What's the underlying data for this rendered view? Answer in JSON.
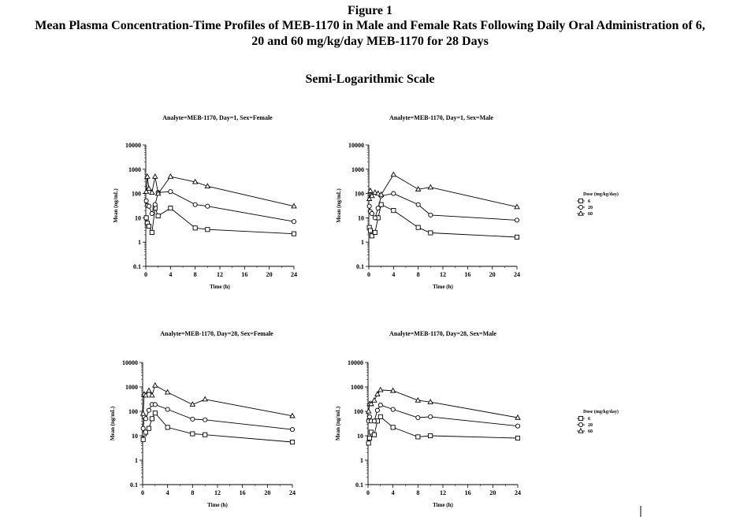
{
  "figure": {
    "label": "Figure 1",
    "title_line1": "Mean Plasma Concentration-Time Profiles of MEB-1170 in Male and Female Rats Following Daily Oral Administration of 6,",
    "title_line2": "20 and 60 mg/kg/day MEB-1170 for 28 Days",
    "subtitle": "Semi-Logarithmic Scale"
  },
  "legend": {
    "title": "Dose (mg/kg/day)",
    "entries": [
      {
        "label": "6",
        "marker": "square-icon"
      },
      {
        "label": "20",
        "marker": "circle-icon"
      },
      {
        "label": "60",
        "marker": "triangle-icon"
      }
    ]
  },
  "chart_data": [
    {
      "type": "line",
      "title": "Analyte=MEB-1170, Day=1, Sex=Female",
      "xlabel": "Time (h)",
      "ylabel": "Mean (ng/mL)",
      "yscale": "log",
      "xlim": [
        0,
        24
      ],
      "ylim": [
        0.1,
        10000
      ],
      "xticks": [
        "0",
        "4",
        "8",
        "12",
        "16",
        "20",
        "24"
      ],
      "yticks": [
        "0.1",
        "1",
        "10",
        "100",
        "1000",
        "10000"
      ],
      "series": [
        {
          "name": "6",
          "marker": "square",
          "x": [
            0.083,
            0.25,
            0.5,
            1,
            1.5,
            2,
            4,
            8,
            10,
            24
          ],
          "y": [
            10,
            6,
            4.5,
            2.5,
            25,
            12,
            25,
            3.8,
            3.3,
            2.2
          ]
        },
        {
          "name": "20",
          "marker": "circle",
          "x": [
            0.083,
            0.25,
            0.5,
            1,
            1.5,
            2,
            4,
            8,
            10,
            24
          ],
          "y": [
            50,
            32,
            30,
            15,
            35,
            110,
            120,
            35,
            30,
            7
          ]
        },
        {
          "name": "60",
          "marker": "triangle",
          "x": [
            0.083,
            0.25,
            0.5,
            1,
            1.5,
            2,
            4,
            8,
            10,
            24
          ],
          "y": [
            120,
            500,
            160,
            110,
            500,
            100,
            500,
            300,
            200,
            30
          ]
        }
      ]
    },
    {
      "type": "line",
      "title": "Analyte=MEB-1170, Day=1, Sex=Male",
      "xlabel": "Time (h)",
      "ylabel": "Mean (ng/mL)",
      "yscale": "log",
      "xlim": [
        0,
        24
      ],
      "ylim": [
        0.1,
        10000
      ],
      "xticks": [
        "0",
        "4",
        "8",
        "12",
        "16",
        "20",
        "24"
      ],
      "yticks": [
        "0.1",
        "1",
        "10",
        "100",
        "1000",
        "10000"
      ],
      "series": [
        {
          "name": "6",
          "marker": "square",
          "x": [
            0.083,
            0.25,
            0.5,
            1,
            1.5,
            2,
            4,
            8,
            10,
            24
          ],
          "y": [
            4,
            3,
            1.8,
            2.5,
            10,
            35,
            20,
            4,
            2.4,
            1.6
          ]
        },
        {
          "name": "20",
          "marker": "circle",
          "x": [
            0.083,
            0.25,
            0.5,
            1,
            1.5,
            2,
            4,
            8,
            10,
            24
          ],
          "y": [
            30,
            18,
            15,
            10,
            25,
            80,
            100,
            35,
            13,
            8
          ]
        },
        {
          "name": "60",
          "marker": "triangle",
          "x": [
            0.083,
            0.25,
            0.5,
            1,
            1.5,
            2,
            4,
            8,
            10,
            24
          ],
          "y": [
            60,
            130,
            80,
            110,
            100,
            90,
            600,
            150,
            180,
            28
          ]
        }
      ]
    },
    {
      "type": "line",
      "title": "Analyte=MEB-1170, Day=28, Sex=Female",
      "xlabel": "Time (h)",
      "ylabel": "Mean (ng/mL)",
      "yscale": "log",
      "xlim": [
        0,
        24
      ],
      "ylim": [
        0.1,
        10000
      ],
      "xticks": [
        "0",
        "4",
        "8",
        "12",
        "16",
        "20",
        "24"
      ],
      "yticks": [
        "0.1",
        "1",
        "10",
        "100",
        "1000",
        "10000"
      ],
      "series": [
        {
          "name": "6",
          "marker": "square",
          "x": [
            0.083,
            0.25,
            0.5,
            1,
            1.5,
            2,
            4,
            8,
            10,
            24
          ],
          "y": [
            7,
            12,
            14,
            20,
            50,
            85,
            22,
            12,
            11,
            5.5
          ]
        },
        {
          "name": "20",
          "marker": "circle",
          "x": [
            0.083,
            0.25,
            0.5,
            1,
            1.5,
            2,
            4,
            8,
            10,
            24
          ],
          "y": [
            20,
            60,
            50,
            110,
            190,
            190,
            120,
            48,
            45,
            18
          ]
        },
        {
          "name": "60",
          "marker": "triangle",
          "x": [
            0.083,
            0.25,
            0.5,
            1,
            1.5,
            2,
            4,
            8,
            10,
            24
          ],
          "y": [
            80,
            500,
            450,
            700,
            450,
            1150,
            600,
            190,
            310,
            65
          ]
        }
      ]
    },
    {
      "type": "line",
      "title": "Analyte=MEB-1170, Day=28, Sex=Male",
      "xlabel": "Time (h)",
      "ylabel": "Mean (ng/mL)",
      "yscale": "log",
      "xlim": [
        0,
        24
      ],
      "ylim": [
        0.1,
        10000
      ],
      "xticks": [
        "0",
        "4",
        "8",
        "12",
        "16",
        "20",
        "24"
      ],
      "yticks": [
        "0.1",
        "1",
        "10",
        "100",
        "1000",
        "10000"
      ],
      "series": [
        {
          "name": "6",
          "marker": "square",
          "x": [
            0.083,
            0.25,
            0.5,
            1,
            1.5,
            2,
            4,
            8,
            10,
            24
          ],
          "y": [
            5,
            8,
            14,
            11,
            40,
            60,
            22,
            9,
            10,
            8
          ]
        },
        {
          "name": "20",
          "marker": "circle",
          "x": [
            0.083,
            0.25,
            0.5,
            1,
            1.5,
            2,
            4,
            8,
            10,
            24
          ],
          "y": [
            40,
            60,
            40,
            40,
            110,
            180,
            120,
            55,
            60,
            25
          ]
        },
        {
          "name": "60",
          "marker": "triangle",
          "x": [
            0.083,
            0.25,
            0.5,
            1,
            1.5,
            2,
            4,
            8,
            10,
            24
          ],
          "y": [
            100,
            200,
            200,
            280,
            500,
            750,
            700,
            280,
            240,
            55
          ]
        }
      ]
    }
  ]
}
